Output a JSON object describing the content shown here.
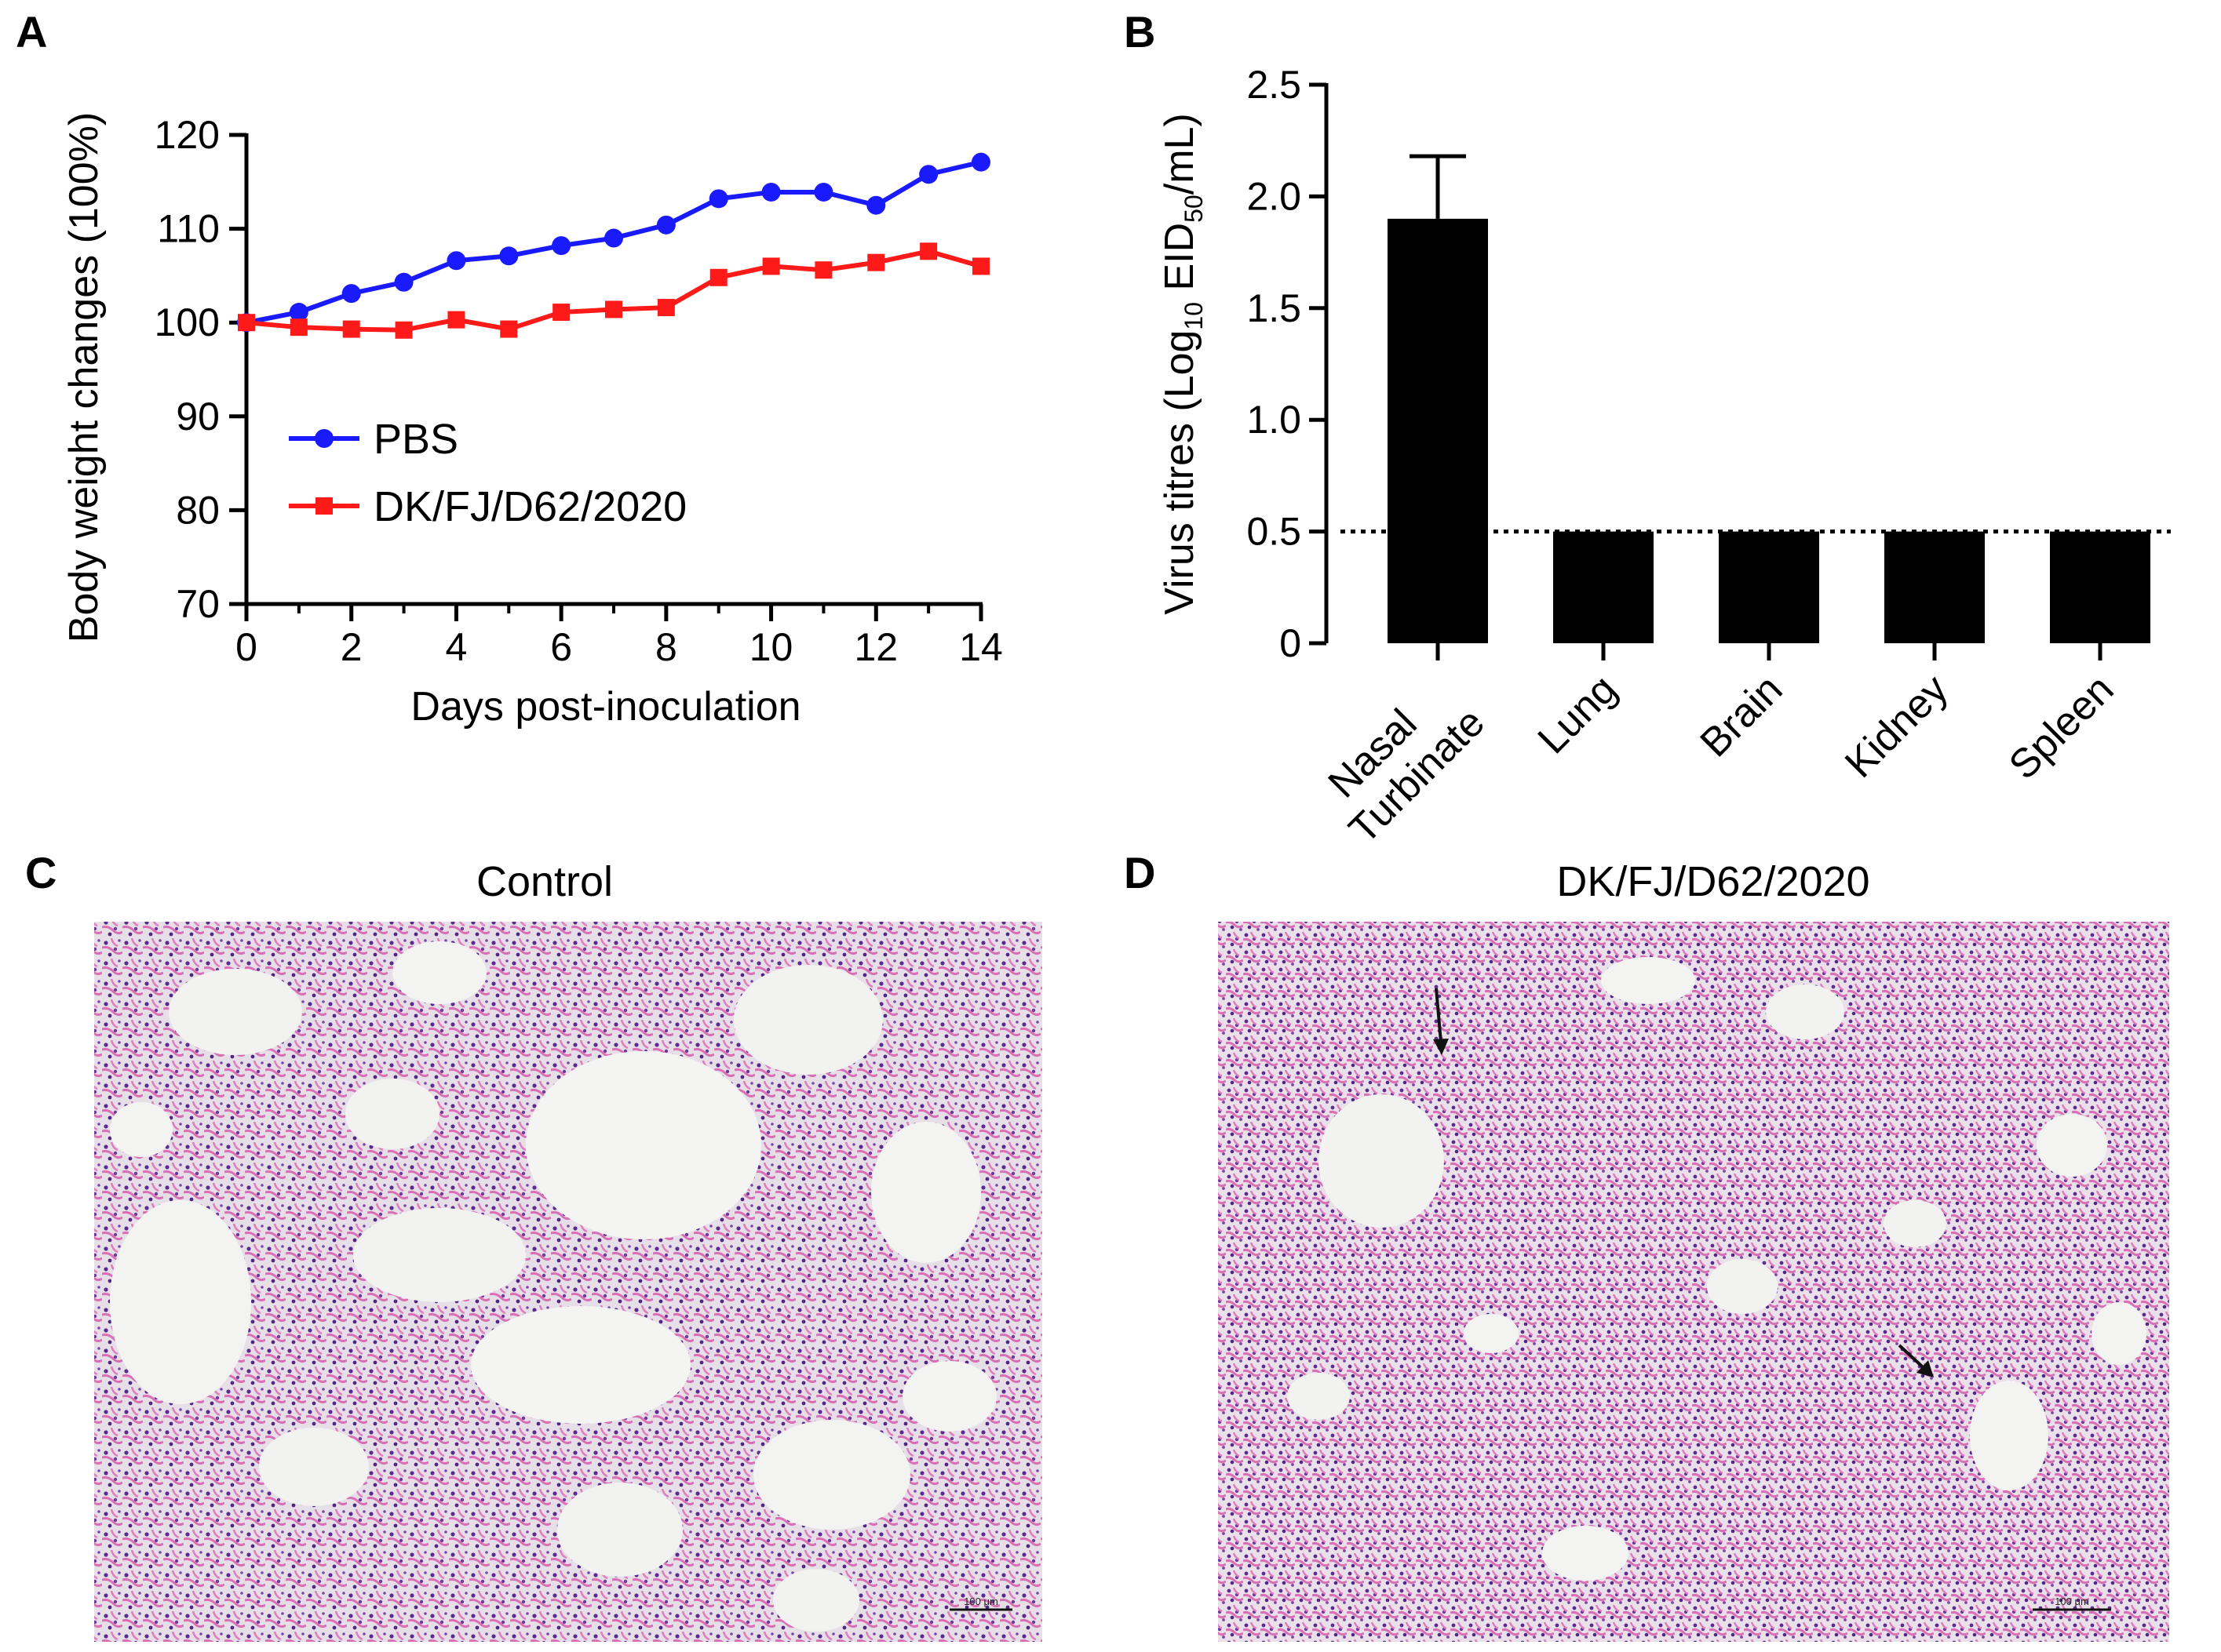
{
  "panels": {
    "a": {
      "letter": "A"
    },
    "b": {
      "letter": "B"
    },
    "c": {
      "letter": "C",
      "title": "Control",
      "scale_bar_label": "100 μm"
    },
    "d": {
      "letter": "D",
      "title": "DK/FJ/D62/2020",
      "scale_bar_label": "100 μm"
    }
  },
  "chart_data": [
    {
      "panel": "A",
      "type": "line",
      "title": "",
      "xlabel": "Days post-inoculation",
      "ylabel": "Body weight changes (100%)",
      "xlim": [
        0,
        14
      ],
      "ylim": [
        70,
        120
      ],
      "x_ticks": [
        0,
        2,
        4,
        6,
        8,
        10,
        12,
        14
      ],
      "y_ticks": [
        70,
        80,
        90,
        100,
        110,
        120
      ],
      "x": [
        0,
        1,
        2,
        3,
        4,
        5,
        6,
        7,
        8,
        9,
        10,
        11,
        12,
        13,
        14
      ],
      "legend_position": "middle-left",
      "series": [
        {
          "name": "PBS",
          "color": "#1a1aff",
          "marker": "circle",
          "values": [
            100,
            101.1,
            103.1,
            104.3,
            106.6,
            107.1,
            108.2,
            109,
            110.4,
            113.2,
            113.9,
            113.9,
            112.5,
            115.8,
            117.1
          ]
        },
        {
          "name": "DK/FJ/D62/2020",
          "color": "#ff1a1a",
          "marker": "square",
          "values": [
            100,
            99.5,
            99.3,
            99.2,
            100.3,
            99.3,
            101.1,
            101.4,
            101.6,
            104.8,
            106,
            105.6,
            106.4,
            107.6,
            106
          ]
        }
      ]
    },
    {
      "panel": "B",
      "type": "bar",
      "title": "",
      "xlabel": "",
      "ylabel_parts": [
        "Virus titres (Log",
        "10",
        " EID",
        "50",
        "/mL)"
      ],
      "ylim": [
        0,
        2.5
      ],
      "y_ticks": [
        0,
        0.5,
        1.0,
        1.5,
        2.0,
        2.5
      ],
      "y_tick_labels": [
        "0",
        "0.5",
        "1.0",
        "1.5",
        "2.0",
        "2.5"
      ],
      "categories": [
        "Nasal\nTurbinate",
        "Lung",
        "Brain",
        "Kidney",
        "Spleen"
      ],
      "category_lines": [
        [
          "Nasal",
          "Turbinate"
        ],
        [
          "Lung"
        ],
        [
          "Brain"
        ],
        [
          "Kidney"
        ],
        [
          "Spleen"
        ]
      ],
      "values": [
        1.9,
        0.5,
        0.5,
        0.5,
        0.5
      ],
      "error_upper": [
        0.28,
        0,
        0,
        0,
        0
      ],
      "detection_limit": 0.5,
      "bar_color": "#000000"
    }
  ]
}
